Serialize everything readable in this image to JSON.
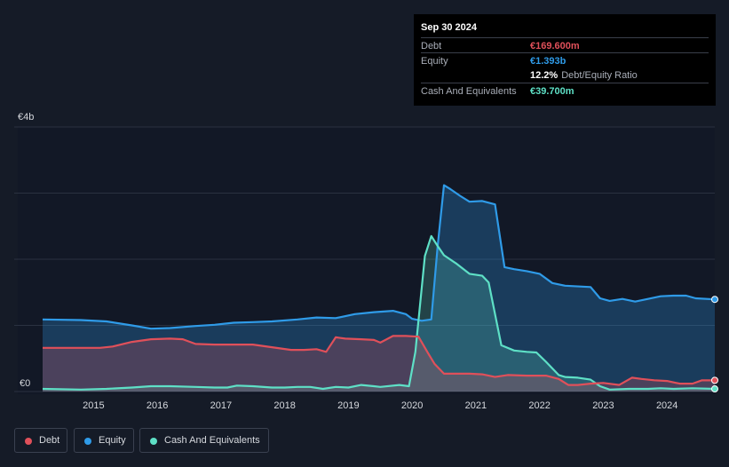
{
  "tooltip": {
    "date": "Sep 30 2024",
    "rows": [
      {
        "label": "Debt",
        "value": "€169.600m",
        "color": "#e0505a"
      },
      {
        "label": "Equity",
        "value": "€1.393b",
        "color": "#2f9be8"
      },
      {
        "label": "",
        "value": "12.2%",
        "suffix": "Debt/Equity Ratio",
        "color": "#ffffff"
      },
      {
        "label": "Cash And Equivalents",
        "value": "€39.700m",
        "color": "#5ee0c6"
      }
    ]
  },
  "legend": [
    {
      "label": "Debt",
      "color": "#e0505a"
    },
    {
      "label": "Equity",
      "color": "#2f9be8"
    },
    {
      "label": "Cash And Equivalents",
      "color": "#5ee0c6"
    }
  ],
  "chart_data": {
    "type": "area",
    "title": "",
    "xlabel": "",
    "ylabel": "",
    "y_unit": "€ billions",
    "ylim": [
      0,
      4
    ],
    "xlim": [
      2014.2,
      2024.75
    ],
    "y_top_label": "€4b",
    "y_bottom_label": "€0",
    "x_ticks": [
      2015,
      2016,
      2017,
      2018,
      2019,
      2020,
      2021,
      2022,
      2023,
      2024
    ],
    "x_tick_labels": [
      "2015",
      "2016",
      "2017",
      "2018",
      "2019",
      "2020",
      "2021",
      "2022",
      "2023",
      "2024"
    ],
    "series": [
      {
        "name": "Equity",
        "color": "#2f9be8",
        "points": [
          [
            2014.2,
            1.09
          ],
          [
            2014.8,
            1.08
          ],
          [
            2015.2,
            1.06
          ],
          [
            2015.6,
            1.0
          ],
          [
            2015.9,
            0.95
          ],
          [
            2016.2,
            0.96
          ],
          [
            2016.6,
            0.99
          ],
          [
            2016.9,
            1.01
          ],
          [
            2017.2,
            1.04
          ],
          [
            2017.5,
            1.05
          ],
          [
            2017.8,
            1.06
          ],
          [
            2018.2,
            1.09
          ],
          [
            2018.5,
            1.12
          ],
          [
            2018.8,
            1.11
          ],
          [
            2019.1,
            1.17
          ],
          [
            2019.4,
            1.2
          ],
          [
            2019.7,
            1.22
          ],
          [
            2019.9,
            1.17
          ],
          [
            2020.0,
            1.1
          ],
          [
            2020.15,
            1.07
          ],
          [
            2020.3,
            1.09
          ],
          [
            2020.4,
            2.2
          ],
          [
            2020.5,
            3.12
          ],
          [
            2020.6,
            3.06
          ],
          [
            2020.75,
            2.96
          ],
          [
            2020.9,
            2.87
          ],
          [
            2021.1,
            2.88
          ],
          [
            2021.3,
            2.83
          ],
          [
            2021.45,
            1.88
          ],
          [
            2021.6,
            1.85
          ],
          [
            2021.8,
            1.82
          ],
          [
            2022.0,
            1.78
          ],
          [
            2022.2,
            1.64
          ],
          [
            2022.4,
            1.6
          ],
          [
            2022.8,
            1.58
          ],
          [
            2022.95,
            1.41
          ],
          [
            2023.1,
            1.37
          ],
          [
            2023.3,
            1.4
          ],
          [
            2023.5,
            1.36
          ],
          [
            2023.7,
            1.4
          ],
          [
            2023.9,
            1.44
          ],
          [
            2024.1,
            1.45
          ],
          [
            2024.3,
            1.45
          ],
          [
            2024.45,
            1.41
          ],
          [
            2024.75,
            1.393
          ]
        ]
      },
      {
        "name": "Cash And Equivalents",
        "color": "#5ee0c6",
        "points": [
          [
            2014.2,
            0.04
          ],
          [
            2014.8,
            0.03
          ],
          [
            2015.2,
            0.04
          ],
          [
            2015.6,
            0.06
          ],
          [
            2015.9,
            0.08
          ],
          [
            2016.2,
            0.08
          ],
          [
            2016.6,
            0.07
          ],
          [
            2016.9,
            0.06
          ],
          [
            2017.1,
            0.06
          ],
          [
            2017.25,
            0.09
          ],
          [
            2017.5,
            0.08
          ],
          [
            2017.8,
            0.06
          ],
          [
            2018.0,
            0.06
          ],
          [
            2018.2,
            0.07
          ],
          [
            2018.4,
            0.07
          ],
          [
            2018.6,
            0.04
          ],
          [
            2018.8,
            0.07
          ],
          [
            2019.0,
            0.06
          ],
          [
            2019.2,
            0.1
          ],
          [
            2019.4,
            0.08
          ],
          [
            2019.5,
            0.07
          ],
          [
            2019.8,
            0.1
          ],
          [
            2019.95,
            0.08
          ],
          [
            2020.05,
            0.6
          ],
          [
            2020.2,
            2.05
          ],
          [
            2020.3,
            2.35
          ],
          [
            2020.4,
            2.2
          ],
          [
            2020.5,
            2.06
          ],
          [
            2020.7,
            1.93
          ],
          [
            2020.9,
            1.78
          ],
          [
            2021.1,
            1.75
          ],
          [
            2021.2,
            1.65
          ],
          [
            2021.4,
            0.7
          ],
          [
            2021.6,
            0.62
          ],
          [
            2021.8,
            0.6
          ],
          [
            2021.95,
            0.59
          ],
          [
            2022.1,
            0.45
          ],
          [
            2022.3,
            0.25
          ],
          [
            2022.4,
            0.22
          ],
          [
            2022.6,
            0.21
          ],
          [
            2022.8,
            0.18
          ],
          [
            2022.95,
            0.08
          ],
          [
            2023.1,
            0.03
          ],
          [
            2023.4,
            0.04
          ],
          [
            2023.7,
            0.04
          ],
          [
            2023.9,
            0.05
          ],
          [
            2024.1,
            0.04
          ],
          [
            2024.4,
            0.05
          ],
          [
            2024.75,
            0.0397
          ]
        ]
      },
      {
        "name": "Debt",
        "color": "#e0505a",
        "points": [
          [
            2014.2,
            0.66
          ],
          [
            2014.8,
            0.66
          ],
          [
            2015.1,
            0.66
          ],
          [
            2015.3,
            0.68
          ],
          [
            2015.6,
            0.75
          ],
          [
            2015.9,
            0.79
          ],
          [
            2016.2,
            0.8
          ],
          [
            2016.4,
            0.79
          ],
          [
            2016.6,
            0.72
          ],
          [
            2016.9,
            0.71
          ],
          [
            2017.2,
            0.71
          ],
          [
            2017.5,
            0.71
          ],
          [
            2017.8,
            0.67
          ],
          [
            2018.1,
            0.63
          ],
          [
            2018.3,
            0.63
          ],
          [
            2018.5,
            0.64
          ],
          [
            2018.65,
            0.6
          ],
          [
            2018.8,
            0.82
          ],
          [
            2018.95,
            0.8
          ],
          [
            2019.2,
            0.79
          ],
          [
            2019.4,
            0.78
          ],
          [
            2019.5,
            0.74
          ],
          [
            2019.7,
            0.84
          ],
          [
            2019.9,
            0.84
          ],
          [
            2020.1,
            0.83
          ],
          [
            2020.25,
            0.58
          ],
          [
            2020.35,
            0.42
          ],
          [
            2020.5,
            0.27
          ],
          [
            2020.7,
            0.27
          ],
          [
            2020.9,
            0.27
          ],
          [
            2021.1,
            0.26
          ],
          [
            2021.3,
            0.22
          ],
          [
            2021.5,
            0.25
          ],
          [
            2021.8,
            0.24
          ],
          [
            2022.1,
            0.24
          ],
          [
            2022.3,
            0.19
          ],
          [
            2022.45,
            0.1
          ],
          [
            2022.6,
            0.1
          ],
          [
            2022.8,
            0.12
          ],
          [
            2023.0,
            0.13
          ],
          [
            2023.25,
            0.1
          ],
          [
            2023.45,
            0.21
          ],
          [
            2023.6,
            0.19
          ],
          [
            2023.8,
            0.17
          ],
          [
            2024.0,
            0.16
          ],
          [
            2024.2,
            0.12
          ],
          [
            2024.4,
            0.12
          ],
          [
            2024.55,
            0.17
          ],
          [
            2024.75,
            0.1696
          ]
        ]
      }
    ]
  }
}
